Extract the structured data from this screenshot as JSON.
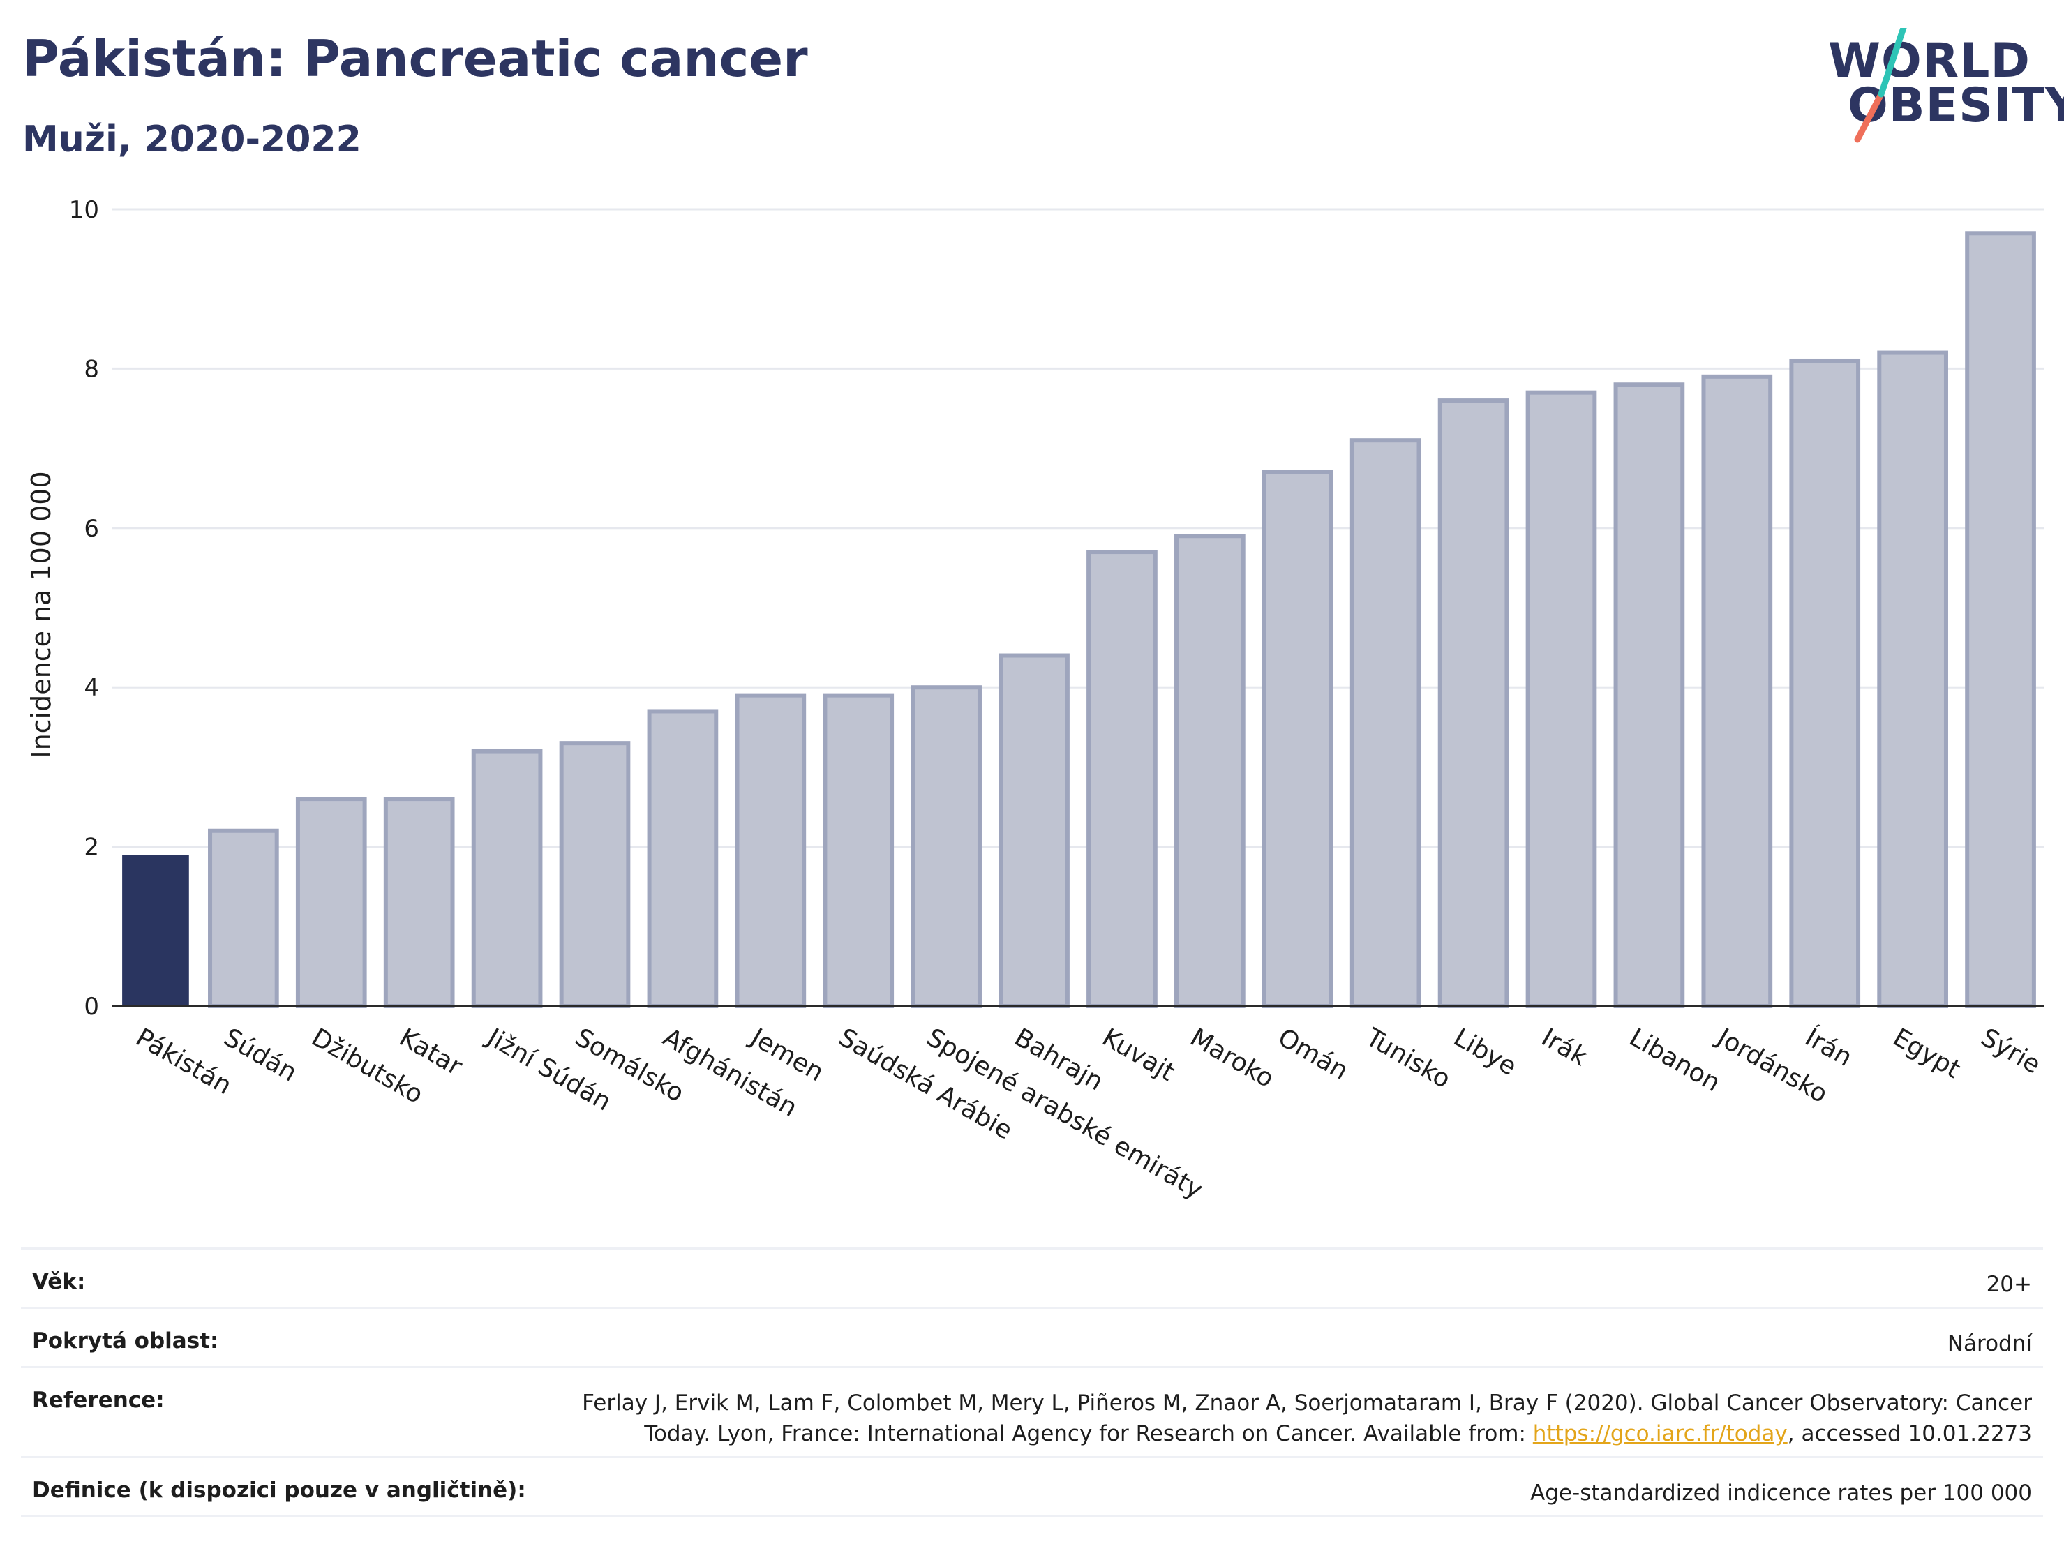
{
  "header": {
    "title": "Pákistán: Pancreatic cancer",
    "subtitle": "Muži, 2020-2022"
  },
  "logo": {
    "line1": "WORLD",
    "line2": "OBESITY",
    "text_color": "#2d3561",
    "accent_colors": [
      "#2ec4b6",
      "#ef6f5a"
    ]
  },
  "chart_data": {
    "type": "bar",
    "ylabel": "Incidence na 100 000",
    "ylim": [
      0,
      10
    ],
    "yticks": [
      0,
      2,
      4,
      6,
      8,
      10
    ],
    "highlight_color": "#2a3560",
    "bar_color": "#bfc3d1",
    "bar_border_color": "#9ea5bd",
    "highlight_index": 0,
    "categories": [
      "Pákistán",
      "Súdán",
      "Džibutsko",
      "Katar",
      "Jižní Súdán",
      "Somálsko",
      "Afghánistán",
      "Jemen",
      "Saúdská Arábie",
      "Spojené arabské emiráty",
      "Bahrajn",
      "Kuvajt",
      "Maroko",
      "Omán",
      "Tunisko",
      "Libye",
      "Irák",
      "Libanon",
      "Jordánsko",
      "Írán",
      "Egypt",
      "Sýrie"
    ],
    "values": [
      1.9,
      2.2,
      2.6,
      2.6,
      3.2,
      3.3,
      3.7,
      3.9,
      3.9,
      4.0,
      4.4,
      5.7,
      5.9,
      6.7,
      7.1,
      7.6,
      7.7,
      7.8,
      7.9,
      8.1,
      8.2,
      9.7
    ]
  },
  "info_table": {
    "age_label": "Věk:",
    "age_value": "20+",
    "area_label": "Pokrytá oblast:",
    "area_value": "Národní",
    "reference_label": "Reference:",
    "reference_line1": "Ferlay J, Ervik M, Lam F, Colombet M, Mery L, Piñeros M, Znaor A, Soerjomataram I, Bray F (2020). Global Cancer Observatory: Cancer",
    "reference_line2_pre": "Today. Lyon, France: International Agency for Research on Cancer. Available from: ",
    "reference_link": "https://gco.iarc.fr/today",
    "reference_line2_post": ", accessed 10.01.2273",
    "definition_label": "Definice (k dispozici pouze v angličtině):",
    "definition_value": "Age-standardized indicence rates per 100 000"
  }
}
